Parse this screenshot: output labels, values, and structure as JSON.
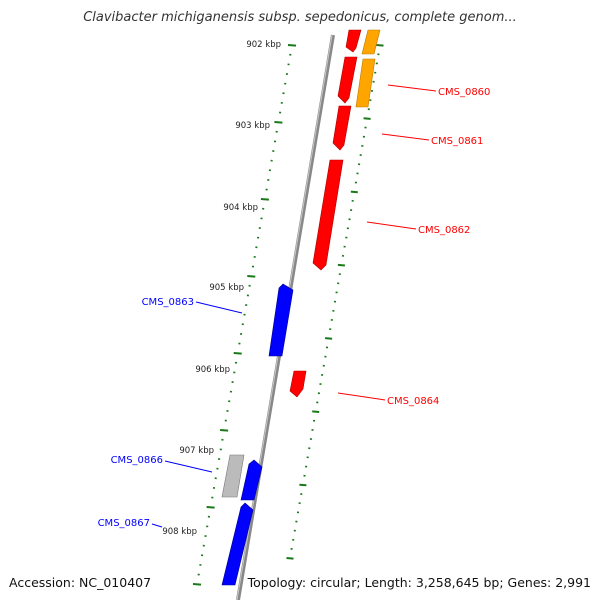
{
  "title": "Clavibacter michiganensis subsp. sepedonicus, complete genom...",
  "footer": {
    "accession": "Accession: NC_010407",
    "info": "Topology: circular; Length: 3,258,645 bp; Genes: 2,991"
  },
  "colors": {
    "forward": "#ff0000",
    "reverse": "#0000ff",
    "orange": "#ffa500",
    "gray": "#bbbbbb",
    "backbone": "#888888",
    "ticks": "#1a7a1a"
  },
  "tick_labels": [
    "902 kbp",
    "903 kbp",
    "904 kbp",
    "905 kbp",
    "906 kbp",
    "907 kbp",
    "908 kbp"
  ],
  "gene_labels": [
    {
      "text": "CMS_0860",
      "strand": "forward"
    },
    {
      "text": "CMS_0861",
      "strand": "forward"
    },
    {
      "text": "CMS_0862",
      "strand": "forward"
    },
    {
      "text": "CMS_0863",
      "strand": "reverse"
    },
    {
      "text": "CMS_0864",
      "strand": "forward"
    },
    {
      "text": "CMS_0866",
      "strand": "reverse"
    },
    {
      "text": "CMS_0867",
      "strand": "reverse"
    }
  ]
}
